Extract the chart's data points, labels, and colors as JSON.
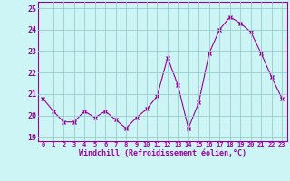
{
  "x": [
    0,
    1,
    2,
    3,
    4,
    5,
    6,
    7,
    8,
    9,
    10,
    11,
    12,
    13,
    14,
    15,
    16,
    17,
    18,
    19,
    20,
    21,
    22,
    23
  ],
  "y": [
    20.8,
    20.2,
    19.7,
    19.7,
    20.2,
    19.9,
    20.2,
    19.8,
    19.4,
    19.9,
    20.3,
    20.9,
    22.7,
    21.4,
    19.4,
    20.6,
    22.9,
    24.0,
    24.6,
    24.3,
    23.9,
    22.9,
    21.8,
    20.8
  ],
  "ylim": [
    18.8,
    25.3
  ],
  "yticks": [
    19,
    20,
    21,
    22,
    23,
    24,
    25
  ],
  "xticks": [
    0,
    1,
    2,
    3,
    4,
    5,
    6,
    7,
    8,
    9,
    10,
    11,
    12,
    13,
    14,
    15,
    16,
    17,
    18,
    19,
    20,
    21,
    22,
    23
  ],
  "xlabel": "Windchill (Refroidissement éolien,°C)",
  "line_color": "#990099",
  "marker_color": "#990099",
  "bg_color": "#cef5f5",
  "grid_color": "#99cccc",
  "tick_color": "#990099",
  "xlabel_color": "#990099",
  "spine_color": "#990099"
}
